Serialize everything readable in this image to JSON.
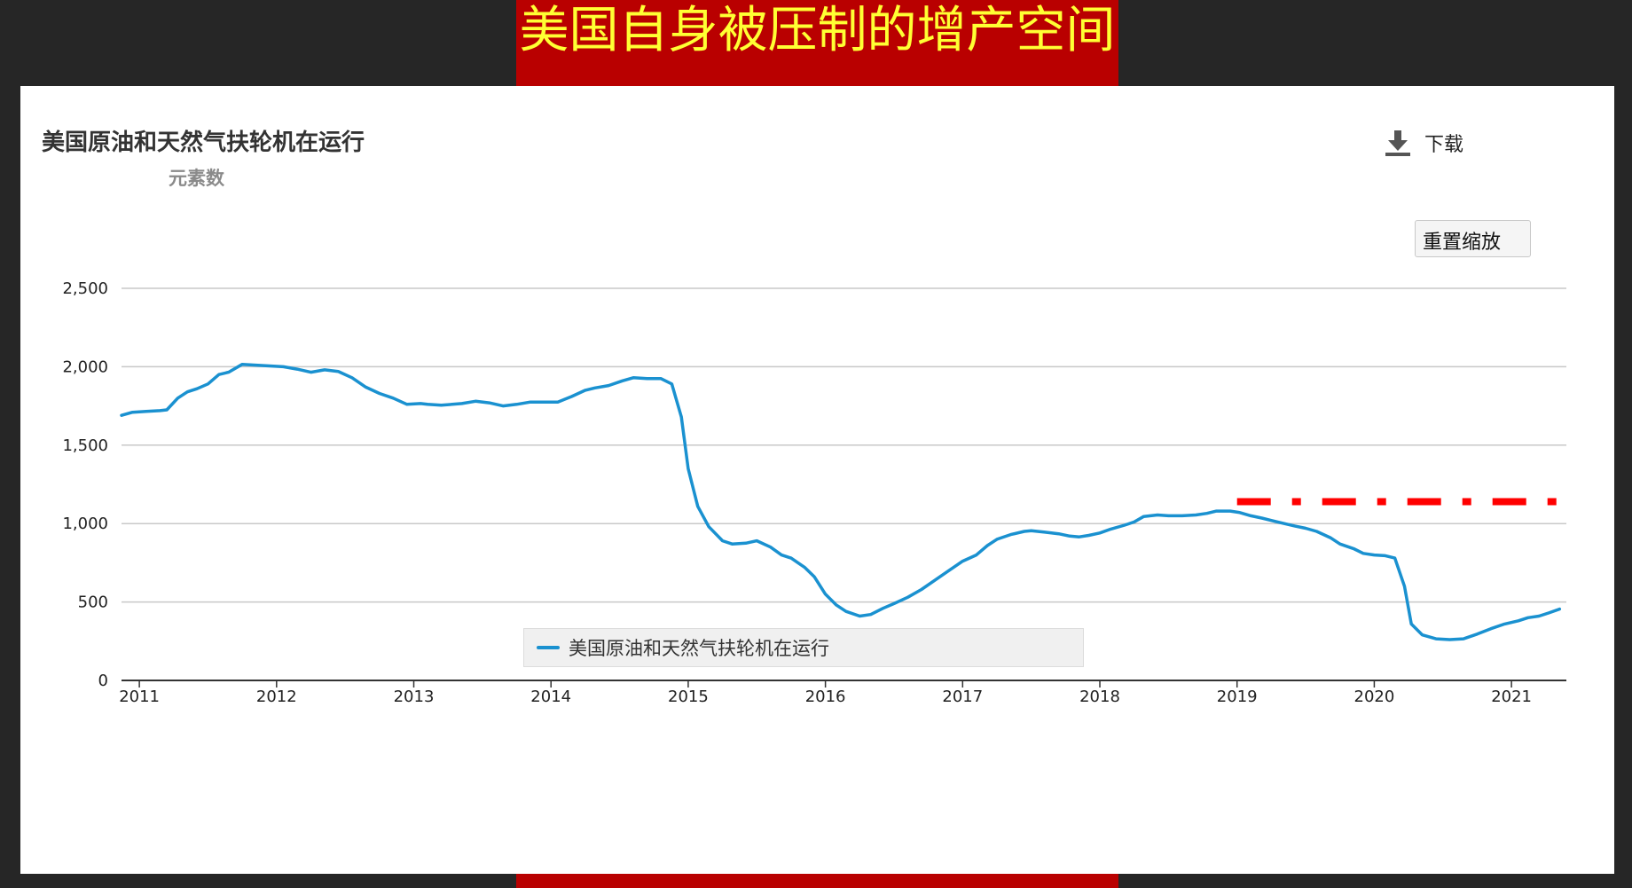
{
  "banner": {
    "title": "美国自身被压制的增产空间"
  },
  "toolbar": {
    "download_label": "下载",
    "reset_zoom_label": "重置缩放"
  },
  "colors": {
    "series": "#1a91d0",
    "reference_line": "#ff0000",
    "banner_bg": "#b90000",
    "banner_text": "#ffff33"
  },
  "chart_data": {
    "type": "line",
    "title": "美国原油和天然气扶轮机在运行",
    "subtitle": "元素数",
    "xlabel": "",
    "ylabel": "",
    "x_range": [
      2010.87,
      2021.4
    ],
    "ylim": [
      0,
      2500
    ],
    "y_ticks": [
      0,
      500,
      1000,
      1500,
      2000,
      2500
    ],
    "y_tick_labels": [
      "0",
      "500",
      "1,000",
      "1,500",
      "2,000",
      "2,500"
    ],
    "x_ticks": [
      2011,
      2012,
      2013,
      2014,
      2015,
      2016,
      2017,
      2018,
      2019,
      2020,
      2021
    ],
    "x_tick_labels": [
      "2011",
      "2012",
      "2013",
      "2014",
      "2015",
      "2016",
      "2017",
      "2018",
      "2019",
      "2020",
      "2021"
    ],
    "grid": "horizontal",
    "legend_position": "bottom-center",
    "series": [
      {
        "name": "美国原油和天然气扶轮机在运行",
        "x": [
          2010.87,
          2010.95,
          2011.05,
          2011.15,
          2011.2,
          2011.28,
          2011.35,
          2011.42,
          2011.5,
          2011.58,
          2011.65,
          2011.75,
          2011.85,
          2011.95,
          2012.05,
          2012.15,
          2012.25,
          2012.35,
          2012.45,
          2012.55,
          2012.65,
          2012.75,
          2012.85,
          2012.95,
          2013.05,
          2013.1,
          2013.2,
          2013.28,
          2013.35,
          2013.45,
          2013.55,
          2013.65,
          2013.75,
          2013.85,
          2013.95,
          2014.05,
          2014.15,
          2014.25,
          2014.32,
          2014.42,
          2014.52,
          2014.6,
          2014.7,
          2014.8,
          2014.88,
          2014.95,
          2015.0,
          2015.07,
          2015.15,
          2015.25,
          2015.32,
          2015.42,
          2015.5,
          2015.6,
          2015.68,
          2015.75,
          2015.85,
          2015.92,
          2016.0,
          2016.08,
          2016.15,
          2016.25,
          2016.33,
          2016.42,
          2016.5,
          2016.6,
          2016.7,
          2016.8,
          2016.9,
          2017.0,
          2017.1,
          2017.18,
          2017.25,
          2017.35,
          2017.45,
          2017.5,
          2017.6,
          2017.7,
          2017.78,
          2017.85,
          2017.92,
          2018.0,
          2018.08,
          2018.18,
          2018.25,
          2018.32,
          2018.42,
          2018.5,
          2018.6,
          2018.7,
          2018.78,
          2018.85,
          2018.95,
          2019.02,
          2019.1,
          2019.18,
          2019.25,
          2019.32,
          2019.42,
          2019.5,
          2019.58,
          2019.68,
          2019.75,
          2019.85,
          2019.92,
          2020.0,
          2020.08,
          2020.15,
          2020.22,
          2020.27,
          2020.35,
          2020.45,
          2020.55,
          2020.65,
          2020.75,
          2020.85,
          2020.95,
          2021.05,
          2021.12,
          2021.2,
          2021.27,
          2021.35
        ],
        "values": [
          1690,
          1710,
          1715,
          1720,
          1725,
          1800,
          1840,
          1860,
          1890,
          1950,
          1965,
          2015,
          2010,
          2005,
          2000,
          1985,
          1965,
          1980,
          1970,
          1930,
          1870,
          1830,
          1800,
          1760,
          1765,
          1760,
          1755,
          1760,
          1765,
          1780,
          1770,
          1750,
          1760,
          1775,
          1775,
          1775,
          1810,
          1850,
          1865,
          1880,
          1910,
          1930,
          1925,
          1925,
          1890,
          1680,
          1350,
          1110,
          980,
          890,
          870,
          875,
          890,
          850,
          800,
          780,
          720,
          660,
          550,
          480,
          440,
          410,
          420,
          460,
          490,
          530,
          580,
          640,
          700,
          760,
          800,
          860,
          900,
          930,
          950,
          955,
          945,
          935,
          920,
          915,
          925,
          940,
          965,
          990,
          1010,
          1045,
          1055,
          1050,
          1050,
          1055,
          1065,
          1080,
          1080,
          1070,
          1050,
          1035,
          1020,
          1005,
          985,
          970,
          950,
          910,
          870,
          840,
          810,
          800,
          795,
          780,
          600,
          360,
          290,
          265,
          260,
          265,
          295,
          330,
          360,
          380,
          400,
          410,
          430,
          455
        ]
      }
    ],
    "annotations": [
      {
        "type": "horizontal-dash-dot-line",
        "y": 1140,
        "x_start": 2019.0,
        "x_end": 2021.55
      }
    ]
  }
}
